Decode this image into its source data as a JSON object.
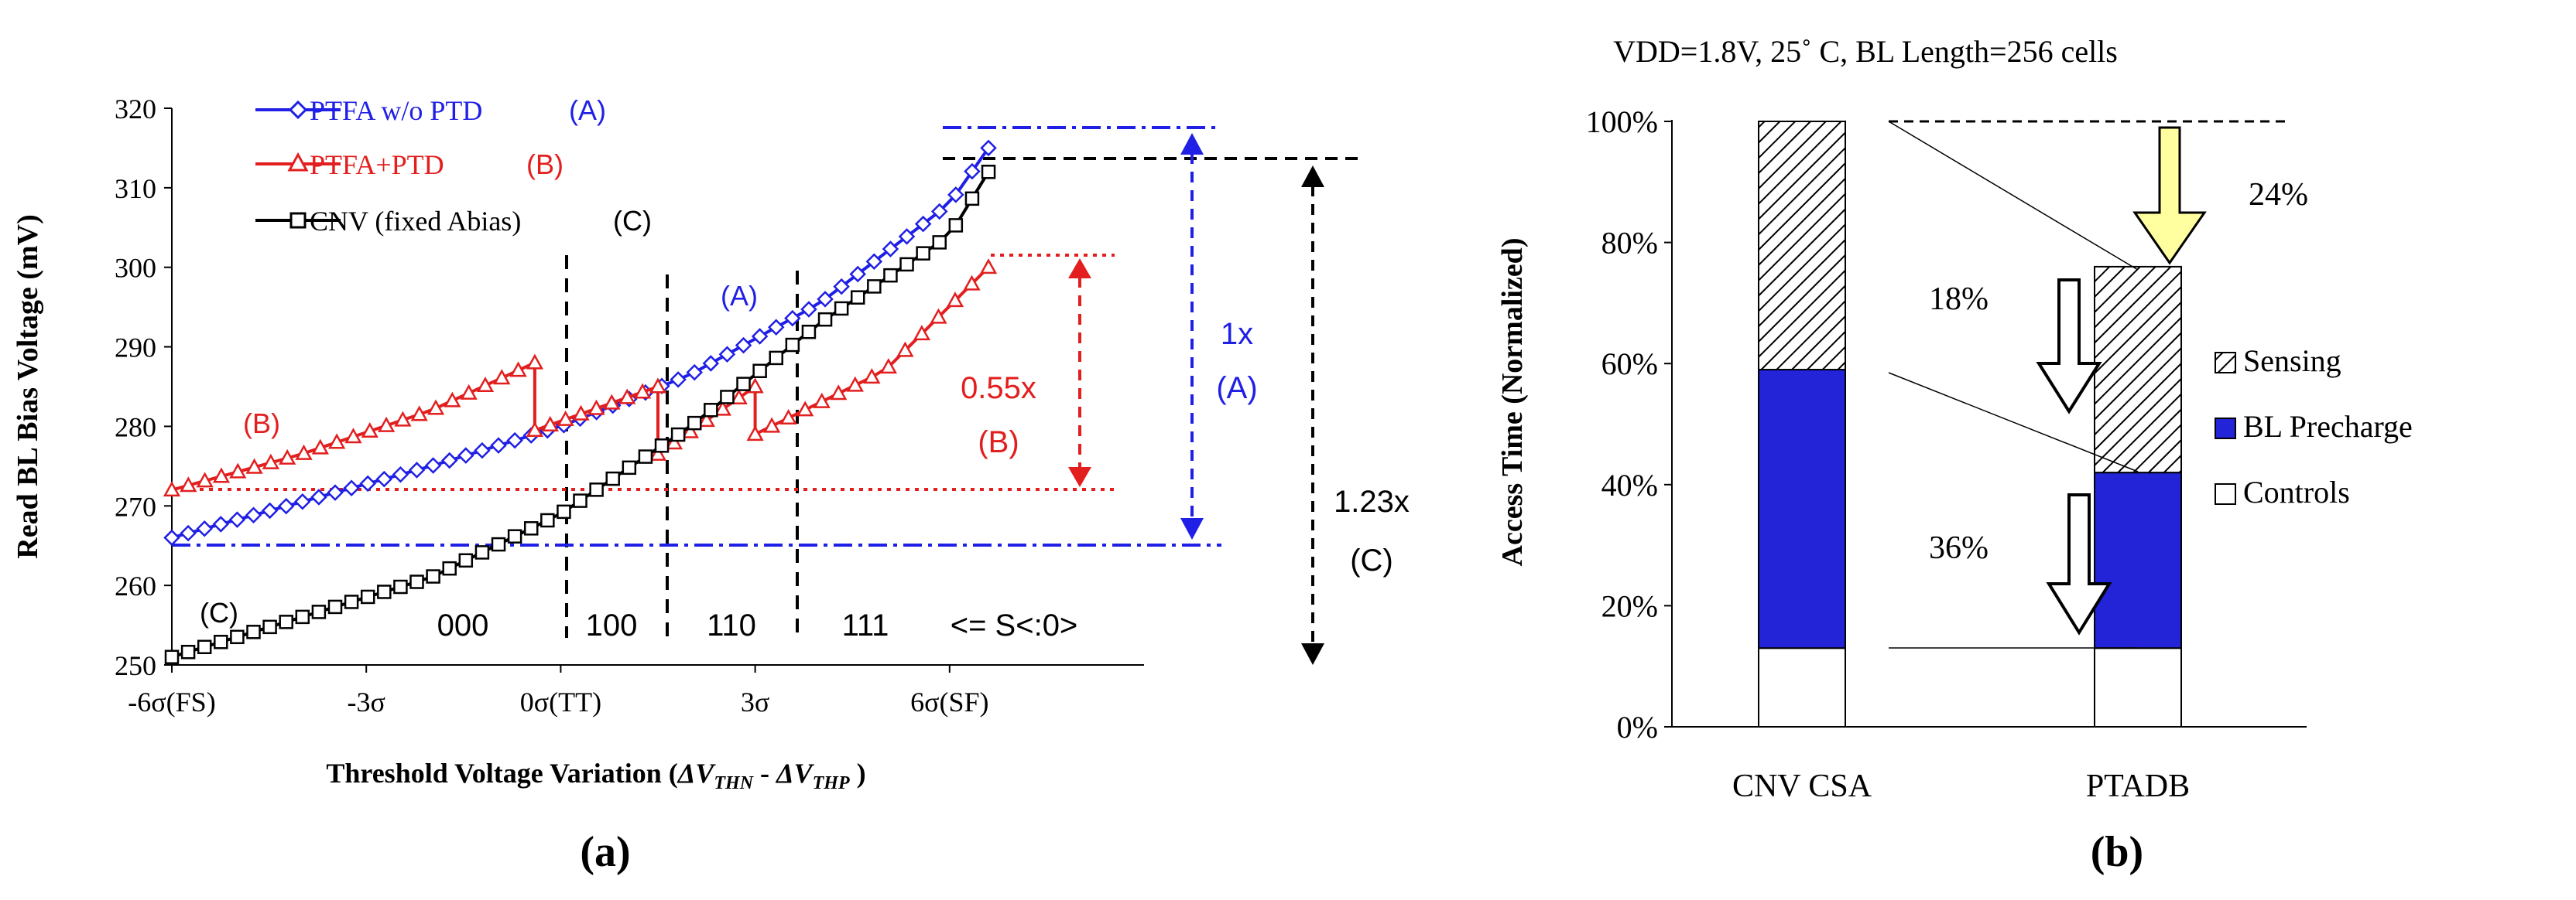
{
  "chart_data": [
    {
      "type": "line",
      "panel_label": "(a)",
      "ylabel": "Read BL Bias  Voltage (mV)",
      "xlabel_prefix": "Threshold  Voltage Variation  (",
      "xlabel_math_1": "ΔV",
      "xlabel_sub_1": "THN",
      "xlabel_math_sep": " - ",
      "xlabel_math_2": "ΔV",
      "xlabel_sub_2": "THP",
      "xlabel_suffix": " )",
      "ylim": [
        250,
        320
      ],
      "yticks": [
        250,
        260,
        270,
        280,
        290,
        300,
        310,
        320
      ],
      "xlim": [
        -6,
        9
      ],
      "xticks": [
        -6,
        -3,
        0,
        3,
        6
      ],
      "xtick_labels": [
        "-6σ(FS)",
        "-3σ",
        "0σ(TT)",
        "3σ",
        "6σ(SF)"
      ],
      "legend": [
        {
          "label": "PTFA w/o PTD",
          "tag": "(A)",
          "color": "#1f1fe6",
          "marker": "diamond"
        },
        {
          "label": "PTFA+PTD",
          "tag": "(B)",
          "color": "#e31e1e",
          "marker": "triangle"
        },
        {
          "label": "CNV (fixed Abias)",
          "tag": "(C)",
          "color": "#000000",
          "marker": "square"
        }
      ],
      "series": [
        {
          "name": "PTFA w/o PTD (A)",
          "color": "#1f1fe6",
          "marker": "diamond",
          "segments": [
            [
              [
                -6,
                266
              ],
              [
                -4,
                270.5
              ],
              [
                -2,
                275
              ],
              [
                0,
                280
              ],
              [
                2,
                286.5
              ],
              [
                4,
                295.5
              ],
              [
                6,
                308
              ],
              [
                6.6,
                315
              ]
            ]
          ]
        },
        {
          "name": "PTFA+PTD (B)",
          "color": "#e31e1e",
          "marker": "triangle",
          "segments": [
            [
              [
                -6,
                272
              ],
              [
                -4,
                276.5
              ],
              [
                -2,
                282
              ],
              [
                -0.4,
                288
              ]
            ],
            [
              [
                -0.4,
                279.5
              ],
              [
                1.5,
                285
              ]
            ],
            [
              [
                1.5,
                276.5
              ],
              [
                3,
                285
              ]
            ],
            [
              [
                3,
                279
              ],
              [
                5,
                287
              ],
              [
                6.6,
                300
              ]
            ]
          ]
        },
        {
          "name": "CNV (fixed Abias) (C)",
          "color": "#000000",
          "marker": "square",
          "segments": [
            [
              [
                -6,
                251
              ],
              [
                -4,
                256
              ],
              [
                -2,
                261
              ],
              [
                0,
                269
              ],
              [
                2,
                280
              ],
              [
                4,
                293
              ],
              [
                6,
                304
              ],
              [
                6.6,
                312
              ]
            ]
          ]
        }
      ],
      "code_labels": [
        "000",
        "100",
        "110",
        "111",
        "<= S<:0>"
      ],
      "curve_tags": [
        "(A)",
        "(B)",
        "(C)"
      ],
      "annotations": [
        {
          "text": "0.55x",
          "sub": "(B)",
          "color": "#e31e1e"
        },
        {
          "text": "1x",
          "sub": "(A)",
          "color": "#1f1fe6"
        },
        {
          "text": "1.23x",
          "sub": "(C)",
          "color": "#000000"
        }
      ]
    },
    {
      "type": "bar",
      "stacked": true,
      "panel_label": "(b)",
      "title": "VDD=1.8V, 25˚ C, BL Length=256  cells",
      "ylabel": "Access Time  (Normalized)",
      "categories": [
        "CNV CSA",
        "PTADB"
      ],
      "ylim": [
        0,
        100
      ],
      "yticks": [
        0,
        20,
        40,
        60,
        80,
        100
      ],
      "ytick_suffix": "%",
      "series": [
        {
          "name": "Controls",
          "values": [
            13,
            13
          ],
          "color": "#ffffff",
          "pattern": "none"
        },
        {
          "name": "BL Precharge",
          "values": [
            46,
            29
          ],
          "color": "#2323d8",
          "pattern": "none"
        },
        {
          "name": "Sensing",
          "values": [
            41,
            34
          ],
          "color": "#ffffff",
          "pattern": "hatch"
        }
      ],
      "legend_order": [
        "Sensing",
        "BL Precharge",
        "Controls"
      ],
      "annotations": [
        {
          "text": "24%",
          "arrow": "filled-yellow"
        },
        {
          "text": "18%",
          "arrow": "hollow"
        },
        {
          "text": "36%",
          "arrow": "hollow"
        }
      ]
    }
  ]
}
